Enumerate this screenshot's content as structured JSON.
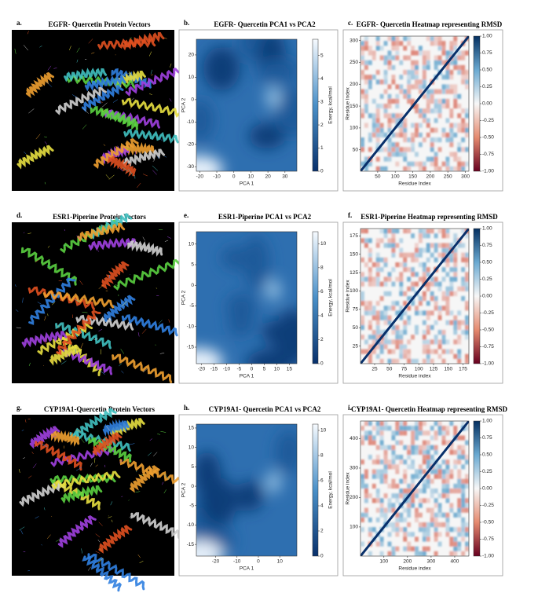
{
  "panels": [
    {
      "type": "image",
      "label": "a.",
      "title": "EGFR- Quercetin Protein Vectors"
    },
    {
      "type": "contour",
      "label": "b.",
      "title": "EGFR- Quercetin PCA1 vs PCA2",
      "xlabel": "PCA 1",
      "ylabel": "PCA 2",
      "xlim": [
        -22,
        37
      ],
      "xticks": [
        -20,
        -10,
        0,
        10,
        20,
        30
      ],
      "ylim": [
        -32,
        27
      ],
      "yticks": [
        -30,
        -20,
        -10,
        0,
        10,
        20
      ],
      "colorbar_label": "Energy, kcal/mol",
      "clim": [
        0,
        5.7
      ],
      "cticks": [
        0,
        1,
        2,
        3,
        4,
        5
      ]
    },
    {
      "type": "heatmap",
      "label": "c.",
      "title": "EGFR- Quercetin Heatmap representing RMSD",
      "xlabel": "Residue Index",
      "ylabel": "Residue Index",
      "xlim": [
        1,
        310
      ],
      "xticks": [
        50,
        100,
        150,
        200,
        250,
        300
      ],
      "ylim": [
        1,
        310
      ],
      "yticks": [
        50,
        100,
        150,
        200,
        250,
        300
      ],
      "clim": [
        -1,
        1
      ],
      "cticks": [
        {
          "value": 1,
          "label": "1.00"
        },
        0.75,
        {
          "value": 0.5,
          "label": "0.50"
        },
        0.25,
        {
          "value": 0,
          "label": "0.00"
        },
        -0.25,
        {
          "value": -0.5,
          "label": "-0.50"
        },
        -0.75,
        {
          "value": -1,
          "label": "-1.00"
        }
      ]
    },
    {
      "type": "image",
      "label": "d.",
      "title": "ESR1-Piperine Protein Vectors"
    },
    {
      "type": "contour",
      "label": "e.",
      "title": "ESR1-Piperine PCA1 vs PCA2",
      "xlabel": "PCA 1",
      "ylabel": "PCA 2",
      "xlim": [
        -22,
        18
      ],
      "xticks": [
        -20,
        -15,
        -10,
        -5,
        0,
        5,
        10,
        15
      ],
      "ylim": [
        -19,
        13
      ],
      "yticks": [
        -15,
        -10,
        -5,
        0,
        5,
        10
      ],
      "colorbar_label": "Energy, kcal/mol",
      "clim": [
        0,
        11
      ],
      "cticks": [
        0,
        2,
        4,
        6,
        8,
        10
      ]
    },
    {
      "type": "heatmap",
      "label": "f.",
      "title": "ESR1-Piperine Heatmap representing RMSD",
      "xlabel": "Residue index",
      "ylabel": "Residue index",
      "xlim": [
        1,
        185
      ],
      "xticks": [
        25,
        50,
        75,
        100,
        125,
        150,
        175
      ],
      "ylim": [
        1,
        185
      ],
      "yticks": [
        25,
        50,
        75,
        100,
        125,
        150,
        175
      ],
      "clim": [
        -1,
        1
      ],
      "cticks": [
        {
          "value": 1,
          "label": "1.00"
        },
        0.75,
        {
          "value": 0.5,
          "label": "0.50"
        },
        0.25,
        {
          "value": 0,
          "label": "0.00"
        },
        -0.25,
        {
          "value": -0.5,
          "label": "-0.50"
        },
        -0.75,
        {
          "value": -1,
          "label": "-1.00"
        }
      ]
    },
    {
      "type": "image",
      "label": "g.",
      "title": "CYP19A1-Quercetin Protein Vectors"
    },
    {
      "type": "contour",
      "label": "h.",
      "title": "CYP19A1- Quercetin PCA1 vs PCA2",
      "xlabel": "PCA 1",
      "ylabel": "PCA 2",
      "xlim": [
        -29,
        18
      ],
      "xticks": [
        -20,
        -10,
        0,
        10
      ],
      "ylim": [
        -18,
        16
      ],
      "yticks": [
        -15,
        -10,
        -5,
        0,
        5,
        10,
        15
      ],
      "colorbar_label": "Energy, kcal/mol",
      "clim": [
        0,
        10.5
      ],
      "cticks": [
        0,
        2,
        4,
        6,
        8,
        10
      ]
    },
    {
      "type": "heatmap",
      "label": "i.",
      "title": "CYP19A1- Quercetin Heatmap representing RMSD",
      "xlabel": "Residue index",
      "ylabel": "Residue index",
      "xlim": [
        1,
        460
      ],
      "xticks": [
        100,
        200,
        300,
        400
      ],
      "ylim": [
        1,
        460
      ],
      "yticks": [
        100,
        200,
        300,
        400
      ],
      "clim": [
        -1,
        1
      ],
      "cticks": [
        {
          "value": 1,
          "label": "1.00"
        },
        0.75,
        {
          "value": 0.5,
          "label": "0.50"
        },
        0.25,
        {
          "value": 0,
          "label": "0.00"
        },
        -0.25,
        {
          "value": -0.5,
          "label": "-0.50"
        },
        -0.75,
        {
          "value": -1,
          "label": "-1.00"
        }
      ]
    }
  ]
}
